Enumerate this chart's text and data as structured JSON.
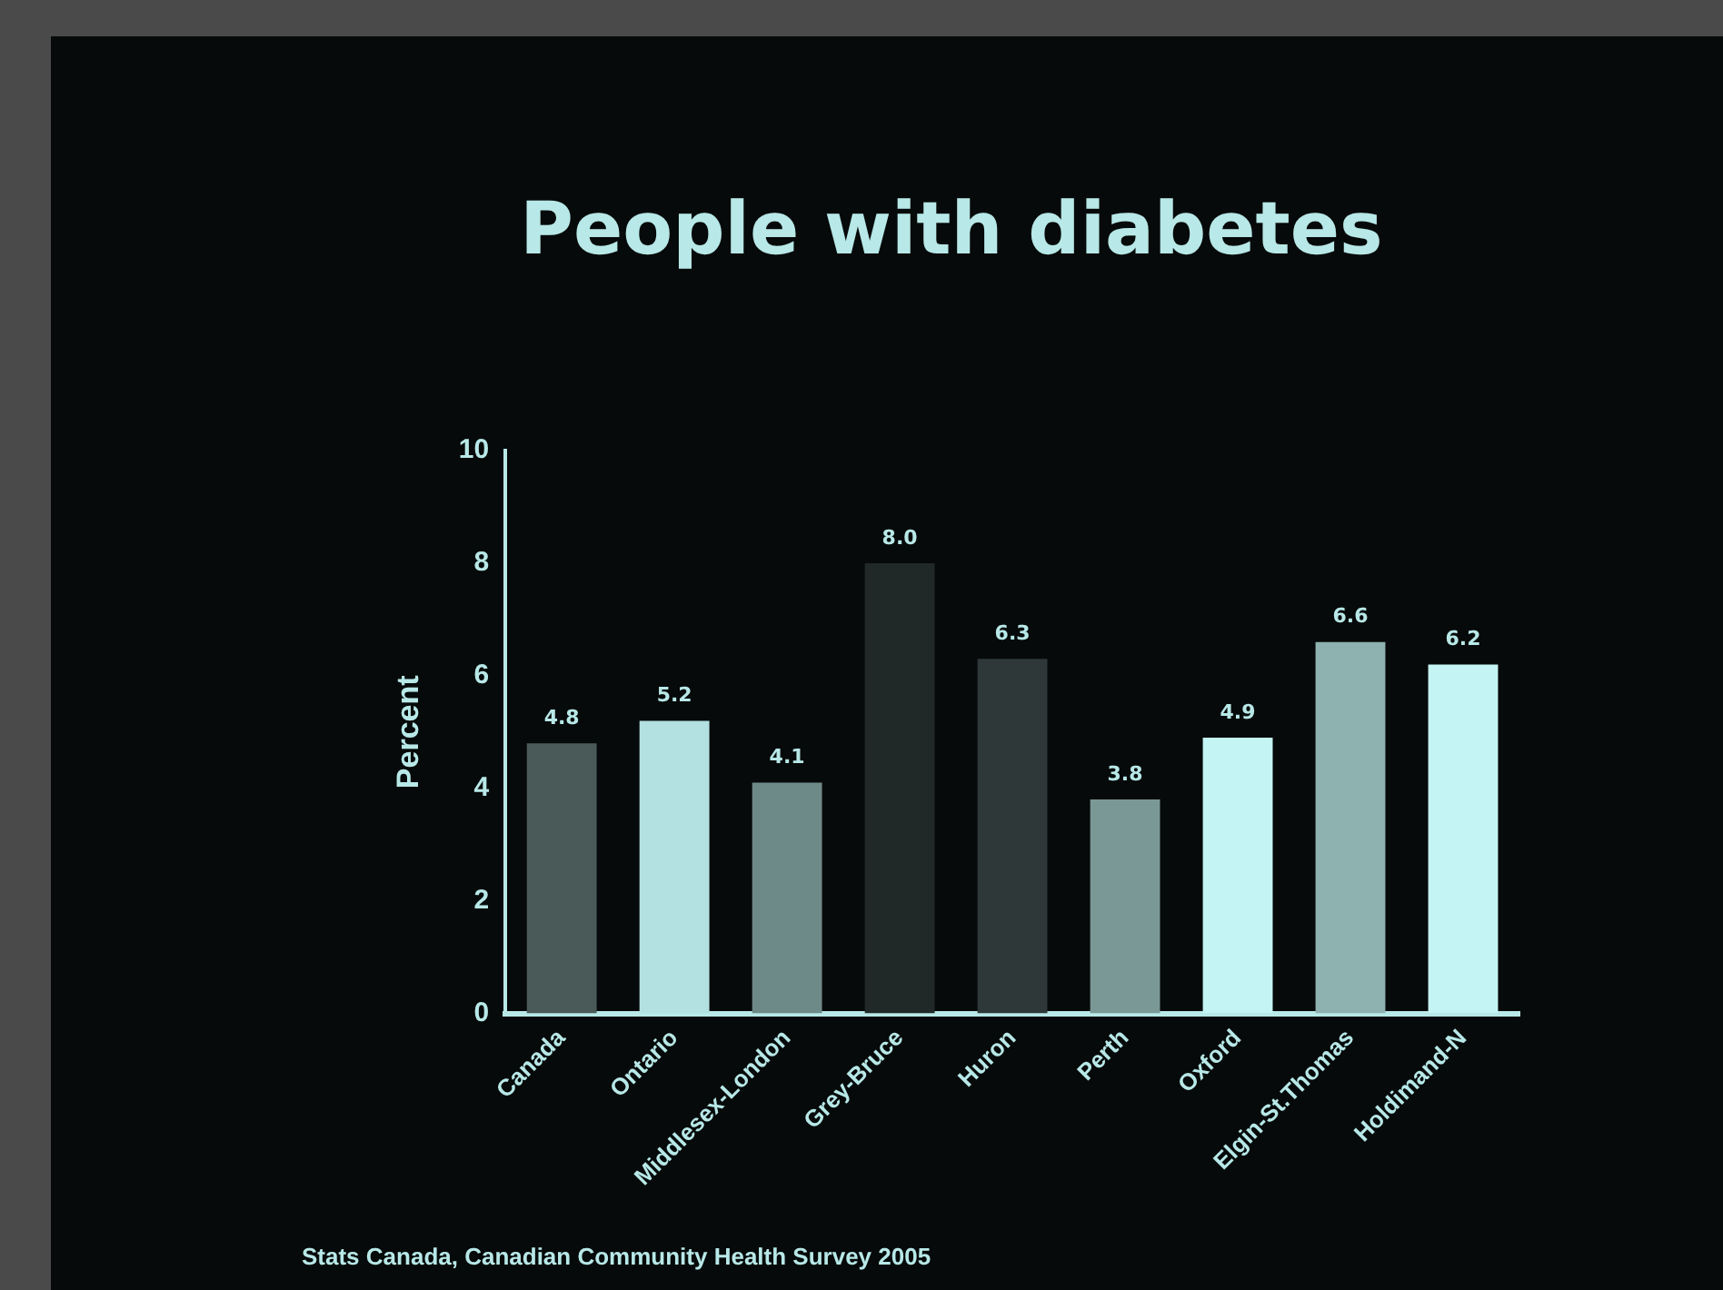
{
  "chart_data": {
    "type": "bar",
    "title": "People with diabetes",
    "ylabel": "Percent",
    "categories": [
      "Canada",
      "Ontario",
      "Middlesex-London",
      "Grey-Bruce",
      "Huron",
      "Perth",
      "Oxford",
      "Elgin-St.Thomas",
      "Holdimand-N"
    ],
    "values": [
      4.8,
      5.2,
      4.1,
      8.0,
      6.3,
      3.8,
      4.9,
      6.6,
      6.2
    ],
    "colors": [
      "#4a5a58",
      "#b3e0e0",
      "#6e8a88",
      "#202828",
      "#2e3838",
      "#7a9896",
      "#c4f4f4",
      "#8eb2b0",
      "#c4f4f4"
    ],
    "value_labels": [
      "4.8",
      "5.2",
      "4.1",
      "8.0",
      "6.3",
      "3.8",
      "4.9",
      "6.6",
      "6.2"
    ],
    "ylim": [
      0,
      10
    ],
    "yticks": [
      0,
      2,
      4,
      6,
      8,
      10
    ],
    "grid": false,
    "legend": false,
    "annotations": [
      "Stats Canada, Canadian Community Health Survey 2005"
    ]
  }
}
